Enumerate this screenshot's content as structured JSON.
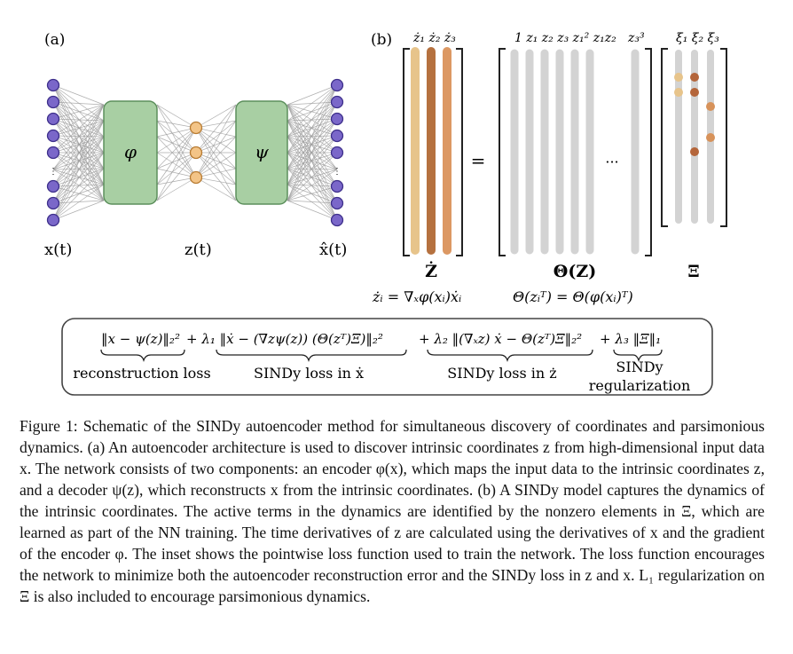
{
  "panel_a": {
    "label": "(a)",
    "encoder_symbol": "φ",
    "decoder_symbol": "ψ",
    "input_label": "x(t)",
    "latent_label": "z(t)",
    "output_label": "x̂(t)",
    "colors": {
      "node": "#7a67c9",
      "latent_node": "#f3c487",
      "block_fill": "#a8cfa3",
      "block_stroke": "#5c8f5c",
      "edge": "#9a9a9a"
    }
  },
  "panel_b": {
    "label": "(b)",
    "zdot_header": "ż₁ ż₂ ż₃",
    "theta_header": "1 z₁ z₂ z₃ z₁² z₁z₂",
    "theta_last_header": "z₃³",
    "xi_header": "ξ₁ ξ₂ ξ₃",
    "equals": "=",
    "ellipsis": "···",
    "zdot_label": "Ż",
    "theta_label": "Θ(Z)",
    "xi_label": "Ξ",
    "zdot_equation": "żᵢ = ∇ₓφ(xᵢ)ẋᵢ",
    "theta_equation": "Θ(zᵢᵀ) = Θ(φ(xᵢ)ᵀ)",
    "colors": {
      "zdot1": "#e7c48b",
      "zdot2": "#b5713f",
      "zdot3": "#dc9863",
      "column": "#d3d3d3",
      "xi_dot_dark": "#b4653a",
      "xi_dot_mid": "#d7925a"
    }
  },
  "loss_box": {
    "term1": "‖x − ψ(z)‖₂²",
    "term2": "+ λ₁ ‖ẋ − (∇zψ(z)) (Θ(zᵀ)Ξ)‖₂²",
    "term3": "+ λ₂ ‖(∇ₓz) ẋ − Θ(zᵀ)Ξ‖₂²",
    "term4": "+ λ₃ ‖Ξ‖₁",
    "label1": "reconstruction loss",
    "label2": "SINDy loss in ẋ",
    "label3": "SINDy loss in ż",
    "label4_line1": "SINDy",
    "label4_line2": "regularization"
  },
  "caption": "Figure 1: Schematic of the SINDy autoencoder method for simultaneous discovery of coordinates and parsimonious dynamics. (a) An autoencoder architecture is used to discover intrinsic coordinates z from high-dimensional input data x. The network consists of two components: an encoder φ(x), which maps the input data to the intrinsic coordinates z, and a decoder ψ(z), which reconstructs x from the intrinsic coordinates. (b) A SINDy model captures the dynamics of the intrinsic coordinates. The active terms in the dynamics are identified by the nonzero elements in Ξ, which are learned as part of the NN training. The time derivatives of z are calculated using the derivatives of x and the gradient of the encoder φ. The inset shows the pointwise loss function used to train the network. The loss function encourages the network to minimize both the autoencoder reconstruction error and the SINDy loss in z and x. L₁ regularization on Ξ is also included to encourage parsimonious dynamics."
}
